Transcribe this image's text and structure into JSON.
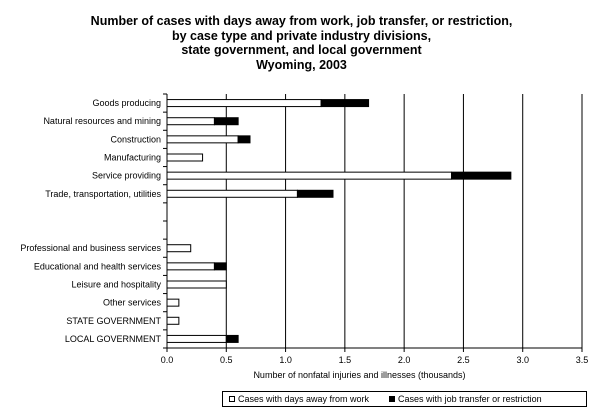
{
  "chart_data": {
    "type": "bar",
    "orientation": "horizontal",
    "stacked": true,
    "title_lines": [
      "Number of cases with days away from work, job transfer, or restriction,",
      "by case type and private industry divisions,",
      "state government, and local government",
      "Wyoming, 2003"
    ],
    "xlabel": "Number of nonfatal injuries and illnesses (thousands)",
    "ylabel": "",
    "xlim": [
      0,
      3.5
    ],
    "x_ticks": [
      "0.0",
      "0.5",
      "1.0",
      "1.5",
      "2.0",
      "2.5",
      "3.0",
      "3.5"
    ],
    "grid": "vertical",
    "legend_position": "bottom",
    "categories": [
      "Goods producing",
      "Natural resources and mining",
      "Construction",
      "Manufacturing",
      "Service providing",
      "Trade, transportation, utilities",
      "",
      "",
      "Professional and business services",
      "Educational and health services",
      "Leisure and hospitality",
      "Other services",
      "STATE GOVERNMENT",
      "LOCAL GOVERNMENT"
    ],
    "series": [
      {
        "name": "Cases with days away from work",
        "color": "#ffffff",
        "values": [
          1.3,
          0.4,
          0.6,
          0.3,
          2.4,
          1.1,
          null,
          null,
          0.2,
          0.4,
          0.5,
          0.1,
          0.1,
          0.5
        ]
      },
      {
        "name": "Cases with job transfer or restriction",
        "color": "#000000",
        "values": [
          0.4,
          0.2,
          0.1,
          0.0,
          0.5,
          0.3,
          null,
          null,
          0.0,
          0.1,
          0.0,
          0.0,
          0.0,
          0.1
        ]
      }
    ]
  }
}
